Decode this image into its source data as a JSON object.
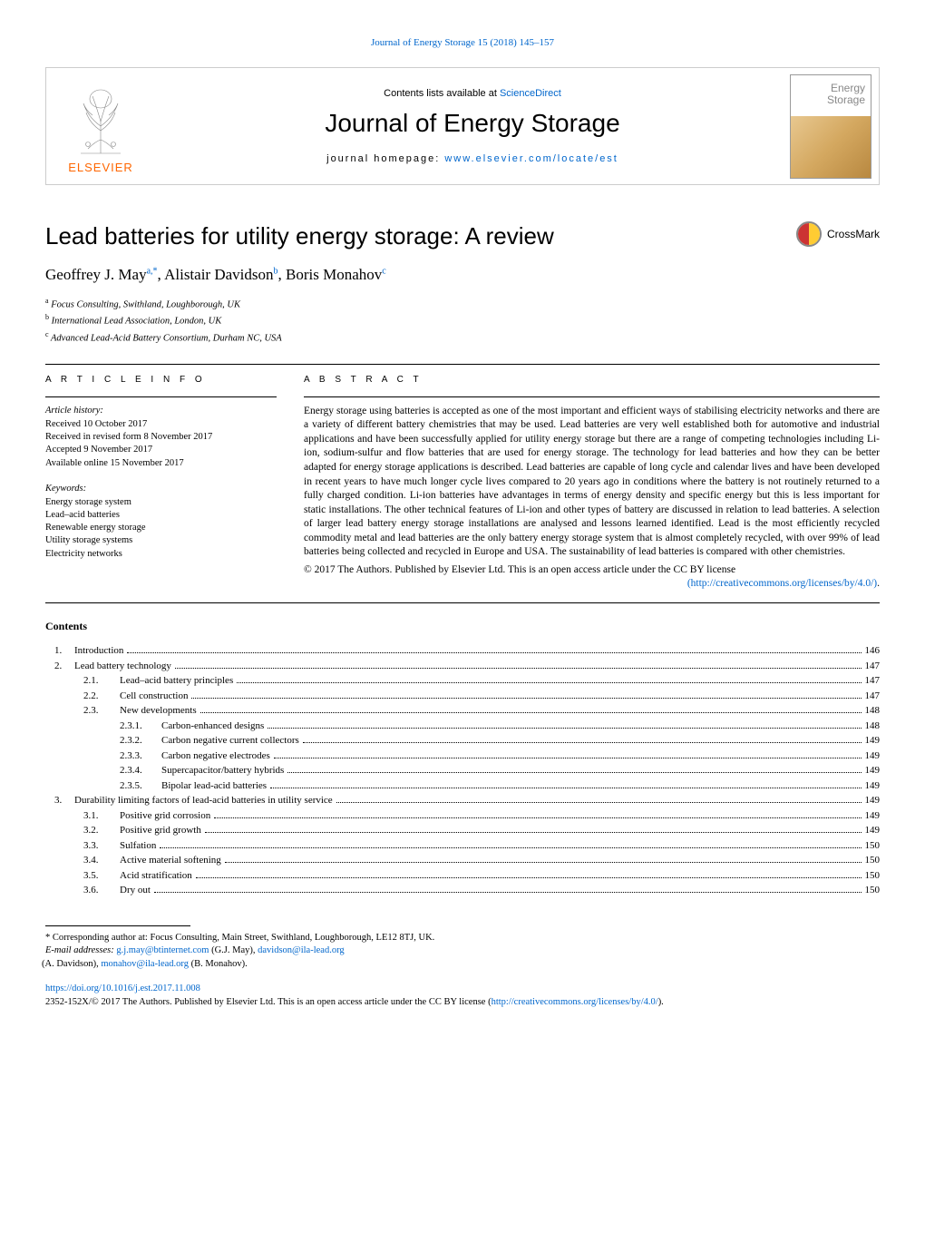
{
  "header_citation": "Journal of Energy Storage 15 (2018) 145–157",
  "contents_available": "Contents lists available at ",
  "sciencedirect": "ScienceDirect",
  "journal_name": "Journal of Energy Storage",
  "homepage_label": "journal homepage: ",
  "homepage_url": "www.elsevier.com/locate/est",
  "elsevier": "ELSEVIER",
  "cover_title_1": "Energy",
  "cover_title_2": "Storage",
  "crossmark": "CrossMark",
  "article_title": "Lead batteries for utility energy storage: A review",
  "authors_html": "Geoffrey J. May",
  "author1": "Geoffrey J. May",
  "author1_sup": "a,*",
  "author2": "Alistair Davidson",
  "author2_sup": "b",
  "author3": "Boris Monahov",
  "author3_sup": "c",
  "aff_a_sup": "a",
  "aff_a": "Focus Consulting, Swithland, Loughborough, UK",
  "aff_b_sup": "b",
  "aff_b": "International Lead Association, London, UK",
  "aff_c_sup": "c",
  "aff_c": "Advanced Lead-Acid Battery Consortium, Durham NC, USA",
  "info_heading": "A R T I C L E   I N F O",
  "abstract_heading": "A B S T R A C T",
  "history_label": "Article history:",
  "history_1": "Received 10 October 2017",
  "history_2": "Received in revised form 8 November 2017",
  "history_3": "Accepted 9 November 2017",
  "history_4": "Available online 15 November 2017",
  "keywords_label": "Keywords:",
  "kw1": "Energy storage system",
  "kw2": "Lead–acid batteries",
  "kw3": "Renewable energy storage",
  "kw4": "Utility storage systems",
  "kw5": "Electricity networks",
  "abstract": "Energy storage using batteries is accepted as one of the most important and efficient ways of stabilising electricity networks and there are a variety of different battery chemistries that may be used. Lead batteries are very well established both for automotive and industrial applications and have been successfully applied for utility energy storage but there are a range of competing technologies including Li-ion, sodium-sulfur and flow batteries that are used for energy storage. The technology for lead batteries and how they can be better adapted for energy storage applications is described. Lead batteries are capable of long cycle and calendar lives and have been developed in recent years to have much longer cycle lives compared to 20 years ago in conditions where the battery is not routinely returned to a fully charged condition. Li-ion batteries have advantages in terms of energy density and specific energy but this is less important for static installations. The other technical features of Li-ion and other types of battery are discussed in relation to lead batteries. A selection of larger lead battery energy storage installations are analysed and lessons learned identified. Lead is the most efficiently recycled commodity metal and lead batteries are the only battery energy storage system that is almost completely recycled, with over 99% of lead batteries being collected and recycled in Europe and USA. The sustainability of lead batteries is compared with other chemistries.",
  "copyright_abstract": "© 2017 The Authors. Published by Elsevier Ltd. This is an open access article under the CC BY license",
  "license_url_text": "(http://creativecommons.org/licenses/by/4.0/)",
  "contents_label": "Contents",
  "toc": [
    {
      "level": 1,
      "num": "1.",
      "title": "Introduction",
      "page": "146"
    },
    {
      "level": 1,
      "num": "2.",
      "title": "Lead battery technology",
      "page": "147"
    },
    {
      "level": 2,
      "num": "2.1.",
      "title": "Lead–acid battery principles",
      "page": "147"
    },
    {
      "level": 2,
      "num": "2.2.",
      "title": "Cell construction",
      "page": "147"
    },
    {
      "level": 2,
      "num": "2.3.",
      "title": "New developments",
      "page": "148"
    },
    {
      "level": 3,
      "num": "2.3.1.",
      "title": "Carbon-enhanced designs",
      "page": "148"
    },
    {
      "level": 3,
      "num": "2.3.2.",
      "title": "Carbon negative current collectors",
      "page": "149"
    },
    {
      "level": 3,
      "num": "2.3.3.",
      "title": "Carbon negative electrodes",
      "page": "149"
    },
    {
      "level": 3,
      "num": "2.3.4.",
      "title": "Supercapacitor/battery hybrids",
      "page": "149"
    },
    {
      "level": 3,
      "num": "2.3.5.",
      "title": "Bipolar lead-acid batteries",
      "page": "149"
    },
    {
      "level": 1,
      "num": "3.",
      "title": "Durability limiting factors of lead-acid batteries in utility service",
      "page": "149"
    },
    {
      "level": 2,
      "num": "3.1.",
      "title": "Positive grid corrosion",
      "page": "149"
    },
    {
      "level": 2,
      "num": "3.2.",
      "title": "Positive grid growth",
      "page": "149"
    },
    {
      "level": 2,
      "num": "3.3.",
      "title": "Sulfation",
      "page": "150"
    },
    {
      "level": 2,
      "num": "3.4.",
      "title": "Active material softening",
      "page": "150"
    },
    {
      "level": 2,
      "num": "3.5.",
      "title": "Acid stratification",
      "page": "150"
    },
    {
      "level": 2,
      "num": "3.6.",
      "title": "Dry out",
      "page": "150"
    }
  ],
  "corr_author": "* Corresponding author at: Focus Consulting, Main Street, Swithland, Loughborough, LE12 8TJ, UK.",
  "email_label": "E-mail addresses: ",
  "email1": "g.j.may@btinternet.com",
  "email1_name": " (G.J. May), ",
  "email2": "davidson@ila-lead.org",
  "email2_name": " (A. Davidson), ",
  "email3": "monahov@ila-lead.org",
  "email3_name": " (B. Monahov).",
  "doi": "https://doi.org/10.1016/j.est.2017.11.008",
  "bottom_copyright_pre": "2352-152X/© 2017 The Authors. Published by Elsevier Ltd. This is an open access article under the CC BY license (",
  "bottom_license_url": "http://creativecommons.org/licenses/by/4.0/",
  "bottom_copyright_post": ").",
  "colors": {
    "link": "#0066cc",
    "elsevier_orange": "#ff6600",
    "text": "#000000",
    "background": "#ffffff"
  }
}
